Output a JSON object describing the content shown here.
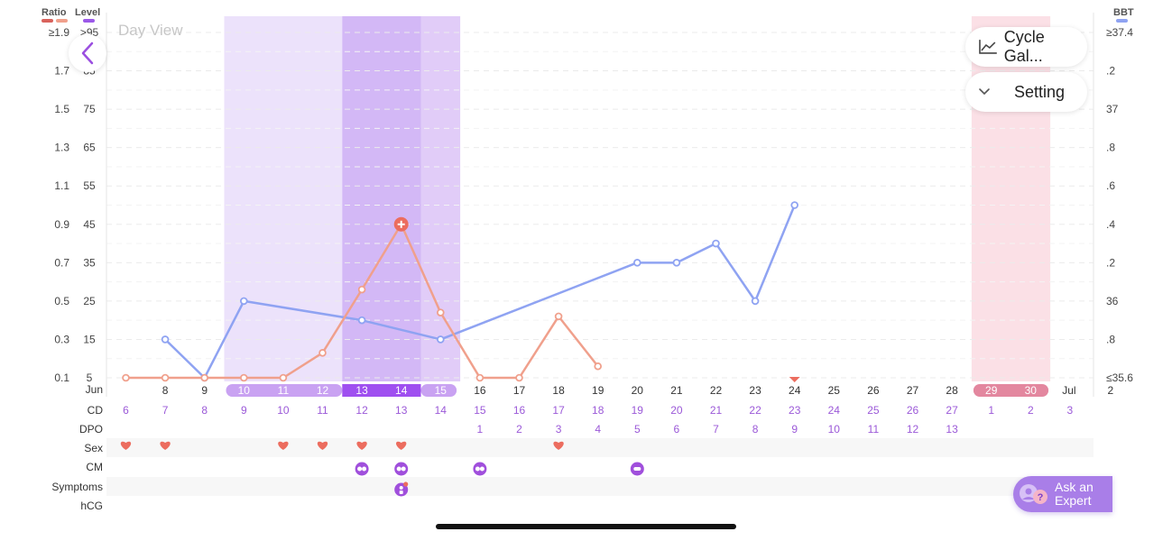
{
  "view_title": "Day View",
  "header": {
    "ratio_label": "Ratio",
    "level_label": "Level",
    "bbt_label": "BBT",
    "ratio_legend_colors": [
      "#d9625c",
      "#f0a08c"
    ],
    "level_legend_color": "#9b59e8",
    "bbt_legend_color": "#8fa3f2"
  },
  "buttons": {
    "cycle_gallery": "Cycle Gal...",
    "setting": "Setting",
    "ask_expert_line1": "Ask an",
    "ask_expert_line2": "Expert"
  },
  "row_labels": {
    "month": "Jun",
    "cd": "CD",
    "dpo": "DPO",
    "sex": "Sex",
    "cm": "CM",
    "symptoms": "Symptoms",
    "hcg": "hCG"
  },
  "days": [
    {
      "date": "",
      "cd": "6"
    },
    {
      "date": "8",
      "cd": "7"
    },
    {
      "date": "9",
      "cd": "8"
    },
    {
      "date": "10",
      "cd": "9"
    },
    {
      "date": "11",
      "cd": "10"
    },
    {
      "date": "12",
      "cd": "11"
    },
    {
      "date": "13",
      "cd": "12"
    },
    {
      "date": "14",
      "cd": "13"
    },
    {
      "date": "15",
      "cd": "14"
    },
    {
      "date": "16",
      "cd": "15",
      "dpo": "1"
    },
    {
      "date": "17",
      "cd": "16",
      "dpo": "2"
    },
    {
      "date": "18",
      "cd": "17",
      "dpo": "3"
    },
    {
      "date": "19",
      "cd": "18",
      "dpo": "4"
    },
    {
      "date": "20",
      "cd": "19",
      "dpo": "5"
    },
    {
      "date": "21",
      "cd": "20",
      "dpo": "6"
    },
    {
      "date": "22",
      "cd": "21",
      "dpo": "7"
    },
    {
      "date": "23",
      "cd": "22",
      "dpo": "8"
    },
    {
      "date": "24",
      "cd": "23",
      "dpo": "9"
    },
    {
      "date": "25",
      "cd": "24",
      "dpo": "10"
    },
    {
      "date": "26",
      "cd": "25",
      "dpo": "11"
    },
    {
      "date": "27",
      "cd": "26",
      "dpo": "12"
    },
    {
      "date": "28",
      "cd": "27",
      "dpo": "13"
    },
    {
      "date": "29",
      "cd": "1"
    },
    {
      "date": "30",
      "cd": "2"
    },
    {
      "date": "2",
      "cd": "3",
      "month": "Jul"
    }
  ],
  "chart_data": {
    "type": "line",
    "left_ratio_ticks": [
      "≥1.9",
      "1.7",
      "1.5",
      "1.3",
      "1.1",
      "0.9",
      "0.7",
      "0.5",
      "0.3",
      "0.1"
    ],
    "left_level_ticks": [
      ">95",
      "85",
      "75",
      "65",
      "55",
      "45",
      "35",
      "25",
      "15",
      "5"
    ],
    "right_bbt_ticks": [
      "≥37.4",
      ".2",
      "37",
      ".8",
      ".6",
      ".4",
      ".2",
      "36",
      ".8",
      "≤35.6"
    ],
    "level_range": [
      5,
      95
    ],
    "bbt_range": [
      35.6,
      37.4
    ],
    "fertile_window_day_index": [
      3,
      8
    ],
    "high_fertility_day_index": [
      6,
      7
    ],
    "period_day_index": [
      22,
      23
    ],
    "series": [
      {
        "type": "level",
        "color": "#f0a08c",
        "values": [
          5,
          5,
          5,
          5,
          5,
          11.5,
          28,
          45,
          22,
          5,
          5,
          21,
          8
        ]
      },
      {
        "type": "bbt",
        "color": "#8fa3f2",
        "values": [
          null,
          35.8,
          35.6,
          36.0,
          null,
          null,
          35.9,
          null,
          35.8,
          null,
          null,
          null,
          null,
          36.2,
          36.2,
          36.3,
          36.0,
          36.5
        ]
      }
    ],
    "peak_day_index": 7,
    "marker_day_index": 17,
    "sex_day_index": [
      0,
      1,
      4,
      5,
      6,
      7,
      11
    ],
    "cm_entries": [
      {
        "day": 6,
        "kind": "creamy"
      },
      {
        "day": 7,
        "kind": "creamy"
      },
      {
        "day": 9,
        "kind": "creamy"
      },
      {
        "day": 13,
        "kind": "sticky"
      }
    ],
    "symptom_day_index": [
      7
    ],
    "colors": {
      "fertile_light": "#ece2fb",
      "fertile_mid": "#e1ccf8",
      "fertile_dark": "#d3b8f6",
      "period": "#fbe0e6",
      "date_pill_light": "#c9a2f2",
      "date_pill_dark": "#9f4ff0",
      "date_pill_period": "#e3879f",
      "icon_purple": "#a04fdc",
      "heart": "#ec6d5f",
      "cd_text": "#9b59d8",
      "dpo_text": "#9b59d8"
    }
  }
}
